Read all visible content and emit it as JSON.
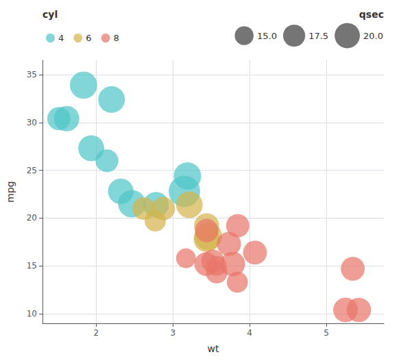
{
  "chart_data": {
    "type": "scatter",
    "marker": "circle",
    "xlabel": "wt",
    "ylabel": "mpg",
    "legend": "upper left",
    "legend_title": "cyl",
    "series": [
      {
        "name": "4",
        "color": "#4DC5C8",
        "x": [
          2.32,
          3.19,
          3.15,
          2.2,
          1.615,
          1.835,
          2.465,
          1.935,
          2.14,
          1.513,
          2.78
        ],
        "values": [
          22.8,
          24.4,
          22.8,
          32.4,
          30.4,
          33.9,
          21.5,
          27.3,
          26.0,
          30.4,
          21.4
        ],
        "sizes": [
          18.61,
          20.0,
          22.9,
          19.47,
          18.52,
          19.9,
          20.01,
          18.9,
          16.7,
          16.9,
          18.6
        ]
      },
      {
        "name": "6",
        "color": "#D4B44A",
        "x": [
          2.62,
          2.875,
          3.215,
          3.46,
          3.44,
          3.44,
          2.77
        ],
        "values": [
          21.0,
          21.0,
          21.4,
          18.1,
          19.2,
          17.8,
          19.7
        ],
        "sizes": [
          16.46,
          17.02,
          19.44,
          20.22,
          18.3,
          18.9,
          15.5
        ]
      },
      {
        "name": "8",
        "color": "#E8756A",
        "x": [
          3.44,
          3.57,
          4.07,
          3.73,
          3.78,
          5.25,
          5.424,
          5.345,
          3.52,
          3.435,
          3.84,
          3.845,
          3.17,
          3.57
        ],
        "values": [
          18.7,
          14.3,
          16.4,
          17.3,
          15.2,
          10.4,
          10.4,
          14.7,
          15.5,
          15.2,
          13.3,
          19.2,
          15.8,
          15.0
        ],
        "sizes": [
          17.02,
          15.84,
          17.4,
          17.6,
          18.0,
          17.98,
          17.82,
          17.42,
          16.87,
          17.3,
          15.41,
          17.05,
          14.5,
          14.6
        ]
      }
    ],
    "size_legend": {
      "title": "qsec",
      "color": "#666666",
      "values": [
        {
          "value": 15.0,
          "label": "15.0"
        },
        {
          "value": 17.5,
          "label": "17.5"
        },
        {
          "value": 20.0,
          "label": "20.0"
        }
      ]
    },
    "xlim": [
      1.3,
      5.75
    ],
    "xticks": [
      2,
      3,
      4,
      5
    ],
    "ylim": [
      9.0,
      36.5
    ],
    "yticks": [
      10,
      15,
      20,
      25,
      30,
      35
    ],
    "grid": true
  }
}
